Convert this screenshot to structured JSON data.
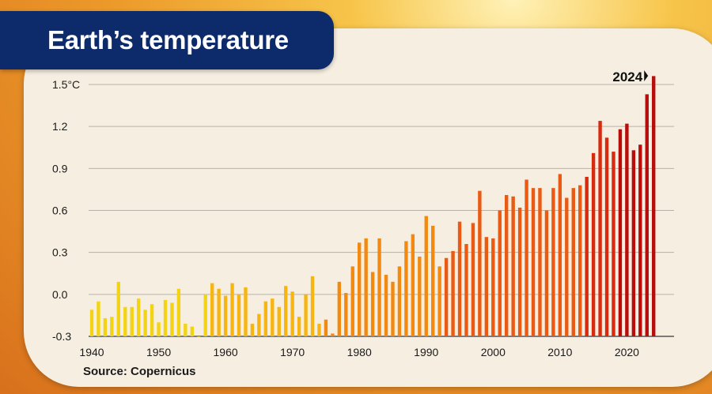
{
  "title": "Earth’s temperature",
  "source": "Source: Copernicus",
  "chart_data": {
    "type": "bar",
    "title": "Earth’s temperature",
    "xlabel": "",
    "ylabel": "",
    "ylim": [
      -0.3,
      1.55
    ],
    "y_ticks": [
      -0.3,
      0.0,
      0.3,
      0.6,
      0.9,
      1.2,
      1.5
    ],
    "y_tick_labels": [
      "-0.3",
      "0.0",
      "0.3",
      "0.6",
      "0.9",
      "1.2",
      "1.5°C"
    ],
    "x_ticks": [
      1940,
      1950,
      1960,
      1970,
      1980,
      1990,
      2000,
      2010,
      2020
    ],
    "annotation": {
      "label": "2024",
      "year": 2024
    },
    "grid": true,
    "colors": [
      "#f2d414",
      "#f6b512",
      "#f28a12",
      "#ea5a12",
      "#d82a0e",
      "#b80d0a"
    ],
    "series": [
      {
        "years": [
          1940,
          1941,
          1942,
          1943,
          1944,
          1945,
          1946,
          1947,
          1948,
          1949,
          1950,
          1951,
          1952,
          1953,
          1954,
          1955,
          1956,
          1957,
          1958,
          1959,
          1960,
          1961,
          1962,
          1963,
          1964,
          1965,
          1966,
          1967,
          1968,
          1969,
          1970,
          1971,
          1972,
          1973,
          1974,
          1975,
          1976,
          1977,
          1978,
          1979,
          1980,
          1981,
          1982,
          1983,
          1984,
          1985,
          1986,
          1987,
          1988,
          1989,
          1990,
          1991,
          1992,
          1993,
          1994,
          1995,
          1996,
          1997,
          1998,
          1999,
          2000,
          2001,
          2002,
          2003,
          2004,
          2005,
          2006,
          2007,
          2008,
          2009,
          2010,
          2011,
          2012,
          2013,
          2014,
          2015,
          2016,
          2017,
          2018,
          2019,
          2020,
          2021,
          2022,
          2023,
          2024
        ],
        "values": [
          -0.11,
          -0.05,
          -0.17,
          -0.16,
          0.09,
          -0.09,
          -0.09,
          -0.03,
          -0.11,
          -0.07,
          -0.2,
          -0.04,
          -0.06,
          0.04,
          -0.21,
          -0.23,
          -0.3,
          0.0,
          0.08,
          0.04,
          -0.01,
          0.08,
          0.0,
          0.05,
          -0.21,
          -0.14,
          -0.05,
          -0.03,
          -0.09,
          0.06,
          0.02,
          -0.16,
          0.0,
          0.13,
          -0.21,
          -0.18,
          -0.28,
          0.09,
          0.01,
          0.2,
          0.37,
          0.4,
          0.16,
          0.4,
          0.14,
          0.09,
          0.2,
          0.38,
          0.43,
          0.27,
          0.56,
          0.49,
          0.2,
          0.26,
          0.31,
          0.52,
          0.36,
          0.51,
          0.74,
          0.41,
          0.4,
          0.6,
          0.71,
          0.7,
          0.62,
          0.82,
          0.76,
          0.76,
          0.6,
          0.76,
          0.86,
          0.69,
          0.76,
          0.78,
          0.84,
          1.01,
          1.24,
          1.12,
          1.02,
          1.18,
          1.22,
          1.03,
          1.07,
          1.43,
          1.56
        ]
      }
    ]
  }
}
